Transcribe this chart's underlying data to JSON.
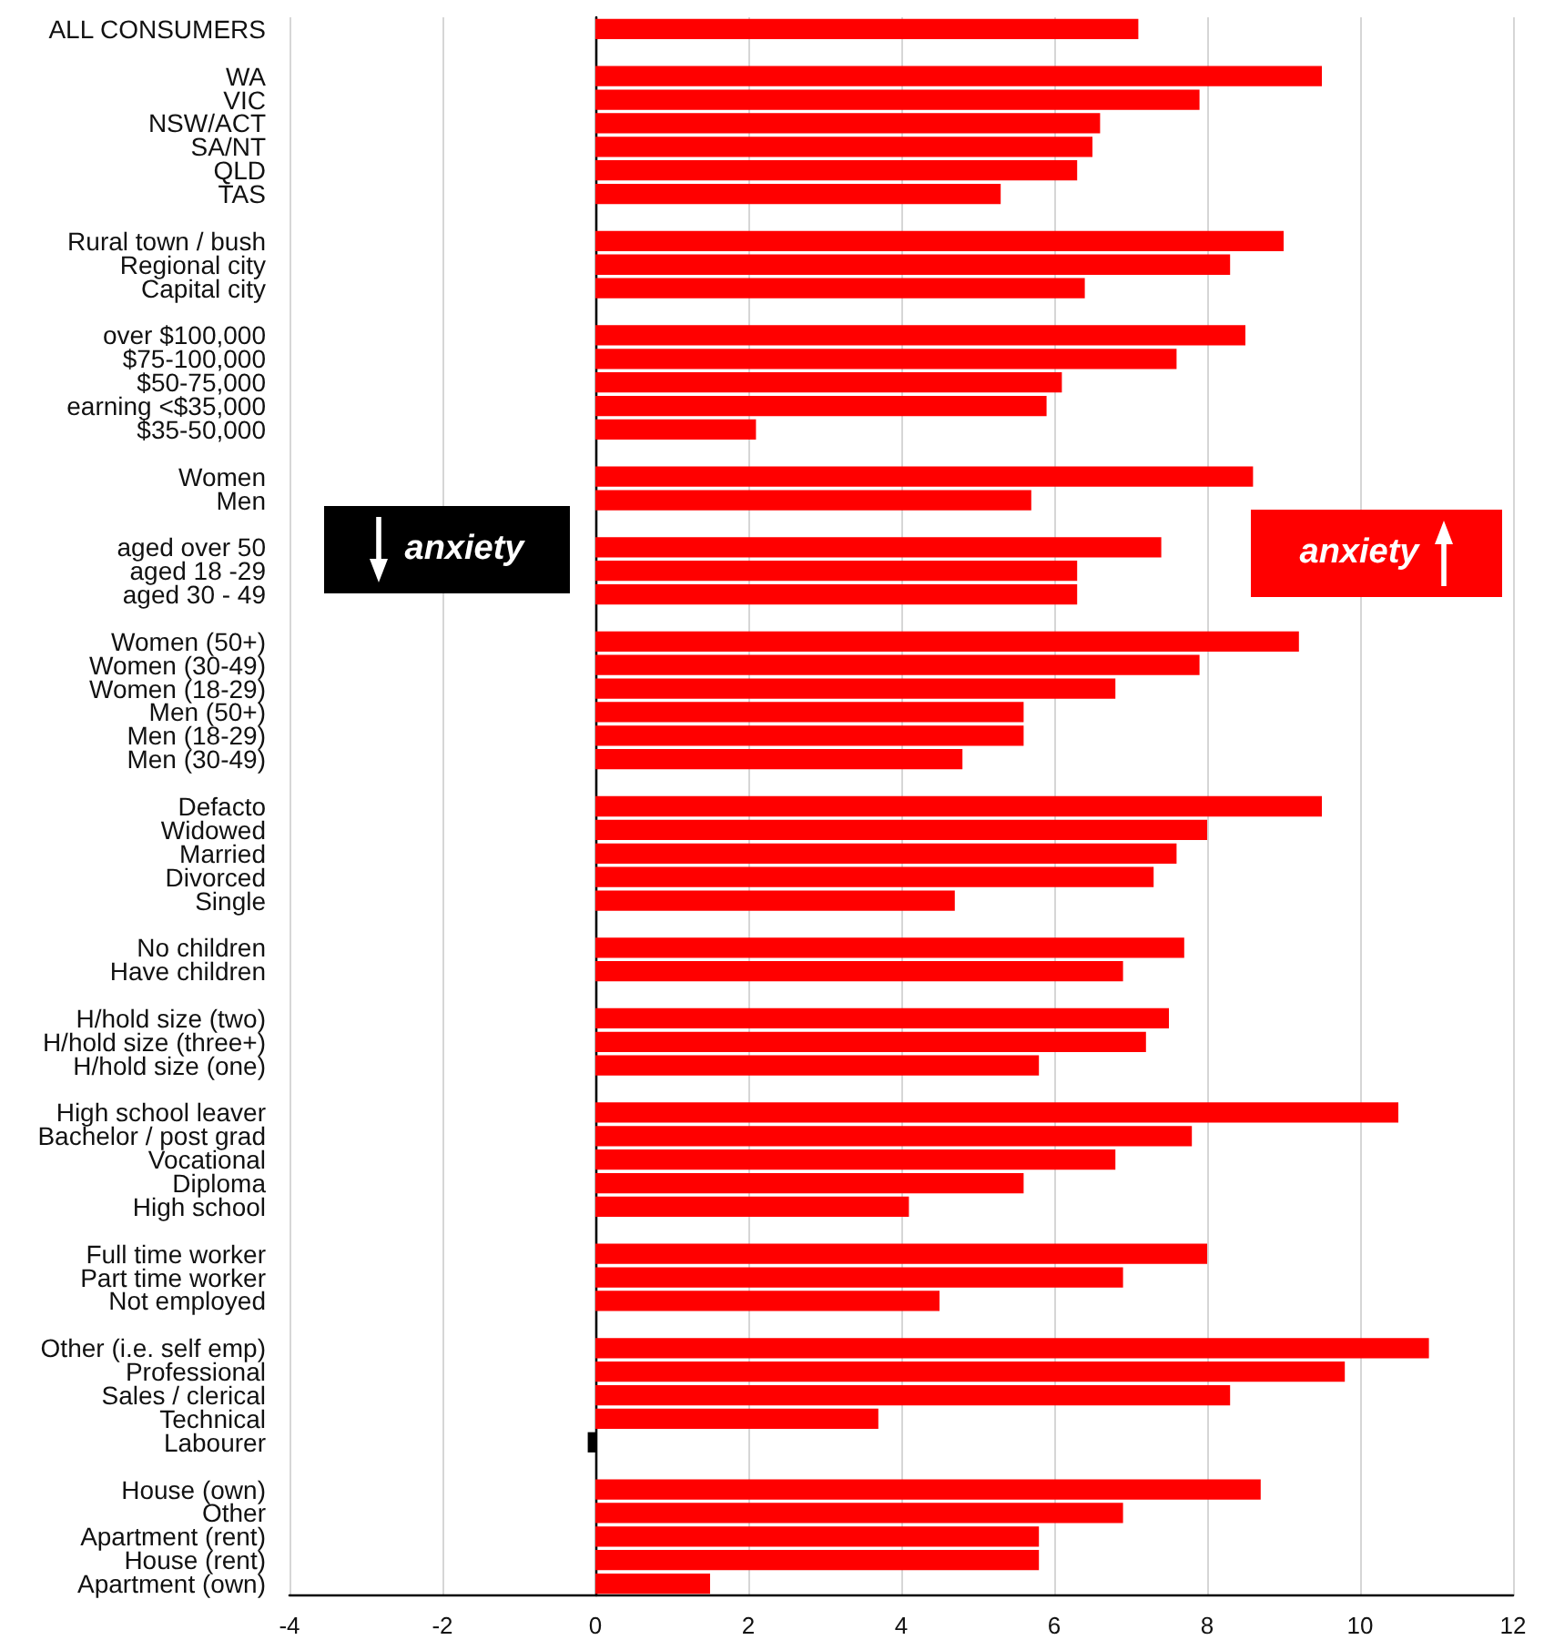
{
  "chart_data": {
    "type": "bar",
    "orientation": "horizontal",
    "categories": [
      "ALL CONSUMERS",
      null,
      "WA",
      "VIC",
      "NSW/ACT",
      "SA/NT",
      "QLD",
      "TAS",
      null,
      "Rural town / bush",
      "Regional city",
      "Capital city",
      null,
      "over $100,000",
      "$75-100,000",
      "$50-75,000",
      "earning <$35,000",
      "$35-50,000",
      null,
      "Women",
      "Men",
      null,
      "aged over 50",
      "aged 18 -29",
      "aged 30 - 49",
      null,
      "Women (50+)",
      "Women (30-49)",
      "Women (18-29)",
      "Men (50+)",
      "Men (18-29)",
      "Men (30-49)",
      null,
      "Defacto",
      "Widowed",
      "Married",
      "Divorced",
      "Single",
      null,
      "No children",
      "Have children",
      null,
      "H/hold size (two)",
      "H/hold size (three+)",
      "H/hold size (one)",
      null,
      "High school leaver",
      "Bachelor / post grad",
      "Vocational",
      "Diploma",
      "High school",
      null,
      "Full time worker",
      "Part time worker",
      "Not employed",
      null,
      "Other (i.e. self emp)",
      "Professional",
      "Sales / clerical",
      "Technical",
      "Labourer",
      null,
      "House (own)",
      "Other",
      "Apartment (rent)",
      "House (rent)",
      "Apartment (own)"
    ],
    "values": [
      7.1,
      null,
      9.5,
      7.9,
      6.6,
      6.5,
      6.3,
      5.3,
      null,
      9.0,
      8.3,
      6.4,
      null,
      8.5,
      7.6,
      6.1,
      5.9,
      2.1,
      null,
      8.6,
      5.7,
      null,
      7.4,
      6.3,
      6.3,
      null,
      9.2,
      7.9,
      6.8,
      5.6,
      5.6,
      4.8,
      null,
      9.5,
      8.0,
      7.6,
      7.3,
      4.7,
      null,
      7.7,
      6.9,
      null,
      7.5,
      7.2,
      5.8,
      null,
      10.5,
      7.8,
      6.8,
      5.6,
      4.1,
      null,
      8.0,
      6.9,
      4.5,
      null,
      10.9,
      9.8,
      8.3,
      3.7,
      -0.1,
      null,
      8.7,
      6.9,
      5.8,
      5.8,
      1.5
    ],
    "colors": [
      "#ff0000",
      null,
      "#ff0000",
      "#ff0000",
      "#ff0000",
      "#ff0000",
      "#ff0000",
      "#ff0000",
      null,
      "#ff0000",
      "#ff0000",
      "#ff0000",
      null,
      "#ff0000",
      "#ff0000",
      "#ff0000",
      "#ff0000",
      "#ff0000",
      null,
      "#ff0000",
      "#ff0000",
      null,
      "#ff0000",
      "#ff0000",
      "#ff0000",
      null,
      "#ff0000",
      "#ff0000",
      "#ff0000",
      "#ff0000",
      "#ff0000",
      "#ff0000",
      null,
      "#ff0000",
      "#ff0000",
      "#ff0000",
      "#ff0000",
      "#ff0000",
      null,
      "#ff0000",
      "#ff0000",
      null,
      "#ff0000",
      "#ff0000",
      "#ff0000",
      null,
      "#ff0000",
      "#ff0000",
      "#ff0000",
      "#ff0000",
      "#ff0000",
      null,
      "#ff0000",
      "#ff0000",
      "#ff0000",
      null,
      "#ff0000",
      "#ff0000",
      "#ff0000",
      "#ff0000",
      "#000000",
      null,
      "#ff0000",
      "#ff0000",
      "#ff0000",
      "#ff0000",
      "#ff0000"
    ],
    "xlim": [
      -4,
      12
    ],
    "xticks": [
      -4,
      -2,
      0,
      2,
      4,
      6,
      8,
      10,
      12
    ],
    "grid": "x",
    "annotations": [
      "anxiety",
      "anxiety"
    ]
  }
}
